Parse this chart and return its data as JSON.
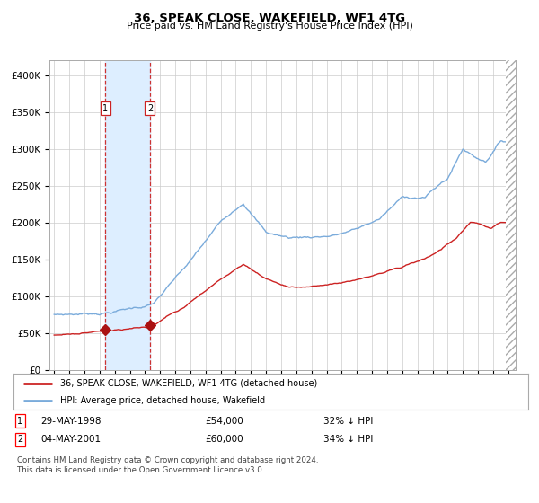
{
  "title": "36, SPEAK CLOSE, WAKEFIELD, WF1 4TG",
  "subtitle": "Price paid vs. HM Land Registry's House Price Index (HPI)",
  "legend_line1": "36, SPEAK CLOSE, WAKEFIELD, WF1 4TG (detached house)",
  "legend_line2": "HPI: Average price, detached house, Wakefield",
  "footer": "Contains HM Land Registry data © Crown copyright and database right 2024.\nThis data is licensed under the Open Government Licence v3.0.",
  "sale1_date": "29-MAY-1998",
  "sale1_price": "£54,000",
  "sale1_hpi": "32% ↓ HPI",
  "sale2_date": "04-MAY-2001",
  "sale2_price": "£60,000",
  "sale2_hpi": "34% ↓ HPI",
  "hpi_color": "#7aabdb",
  "price_color": "#cc2222",
  "sale_marker_color": "#aa1111",
  "vline_color": "#cc3333",
  "shade_color": "#ddeeff",
  "background_color": "#ffffff",
  "grid_color": "#cccccc",
  "ylim": [
    0,
    420000
  ],
  "yticks": [
    0,
    50000,
    100000,
    150000,
    200000,
    250000,
    300000,
    350000,
    400000
  ],
  "sale1_x": 1998.38,
  "sale2_x": 2001.33,
  "sale1_y": 54000,
  "sale2_y": 60000,
  "xlim_left": 1994.7,
  "xlim_right": 2025.5
}
